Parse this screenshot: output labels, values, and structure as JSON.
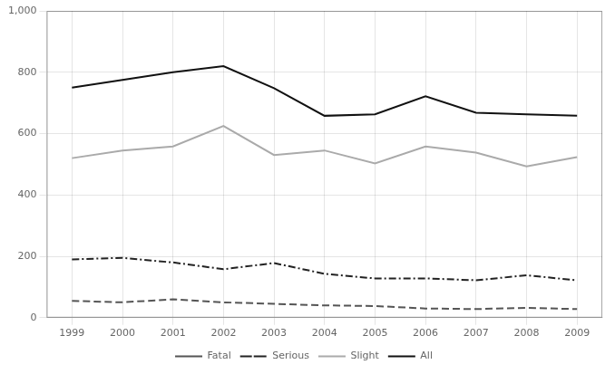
{
  "chart_data": {
    "type": "line",
    "x": [
      1999,
      2000,
      2001,
      2002,
      2003,
      2004,
      2005,
      2006,
      2007,
      2008,
      2009
    ],
    "series": [
      {
        "name": "Fatal",
        "color": "#555555",
        "line_style": "dashed",
        "values": [
          55,
          50,
          60,
          50,
          45,
          40,
          38,
          30,
          28,
          32,
          28
        ]
      },
      {
        "name": "Serious",
        "color": "#222222",
        "line_style": "dashdot",
        "values": [
          190,
          195,
          180,
          158,
          178,
          143,
          128,
          128,
          122,
          138,
          122
        ]
      },
      {
        "name": "Slight",
        "color": "#aaaaaa",
        "line_style": "solid",
        "values": [
          520,
          545,
          558,
          625,
          530,
          545,
          503,
          558,
          538,
          493,
          523
        ]
      },
      {
        "name": "All",
        "color": "#111111",
        "line_style": "solid",
        "values": [
          750,
          775,
          800,
          820,
          748,
          658,
          663,
          722,
          668,
          663,
          658
        ]
      }
    ],
    "xlim": [
      1998.5,
      2009.5
    ],
    "xticks": [
      1999,
      2000,
      2001,
      2002,
      2003,
      2004,
      2005,
      2006,
      2007,
      2008,
      2009
    ],
    "ylim": [
      0,
      1000
    ],
    "yticks": [
      0,
      200,
      400,
      600,
      800,
      {
        "value": 1000,
        "label": "1,000"
      }
    ],
    "grid": true,
    "legend": "bottom"
  }
}
